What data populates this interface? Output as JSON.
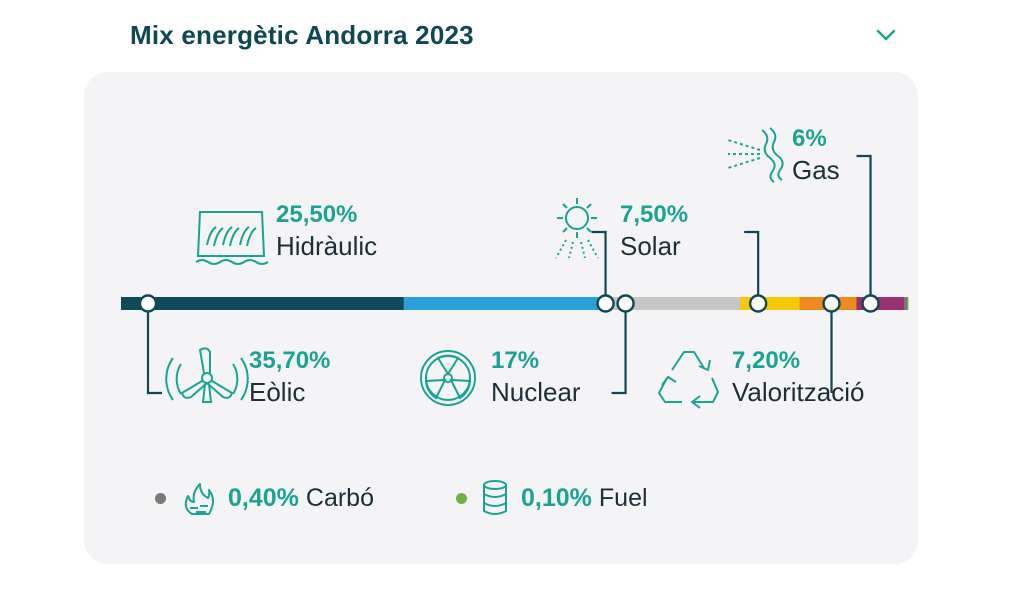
{
  "header": {
    "title": "Mix energètic Andorra 2023",
    "toggle_icon": "chevron-down-icon"
  },
  "colors": {
    "accent": "#1aa392",
    "title": "#0f4754",
    "text": "#1b2f36",
    "card_bg": "#f4f4f6"
  },
  "chart_data": {
    "type": "bar",
    "title": "Mix energètic Andorra 2023",
    "series": [
      {
        "name": "Eòlic",
        "value": 35.7,
        "label": "35,70%",
        "color": "#0e4a5a",
        "icon": "wind-turbine-icon"
      },
      {
        "name": "Hidràulic",
        "value": 25.5,
        "label": "25,50%",
        "color": "#2a9fd8",
        "icon": "hydro-dam-icon"
      },
      {
        "name": "Nuclear",
        "value": 17,
        "label": "17%",
        "color": "#c6c6c6",
        "icon": "nuclear-icon"
      },
      {
        "name": "Solar",
        "value": 7.5,
        "label": "7,50%",
        "color": "#f6c800",
        "icon": "sun-icon"
      },
      {
        "name": "Valorització",
        "value": 7.2,
        "label": "7,20%",
        "color": "#f08a1e",
        "icon": "recycle-icon"
      },
      {
        "name": "Gas",
        "value": 6,
        "label": "6%",
        "color": "#9a2f72",
        "icon": "gas-icon"
      },
      {
        "name": "Carbó",
        "value": 0.4,
        "label": "0,40%",
        "color": "#7a7a7a",
        "icon": "fire-icon"
      },
      {
        "name": "Fuel",
        "value": 0.1,
        "label": "0,10%",
        "color": "#6db33f",
        "icon": "fuel-barrel-icon"
      }
    ]
  }
}
